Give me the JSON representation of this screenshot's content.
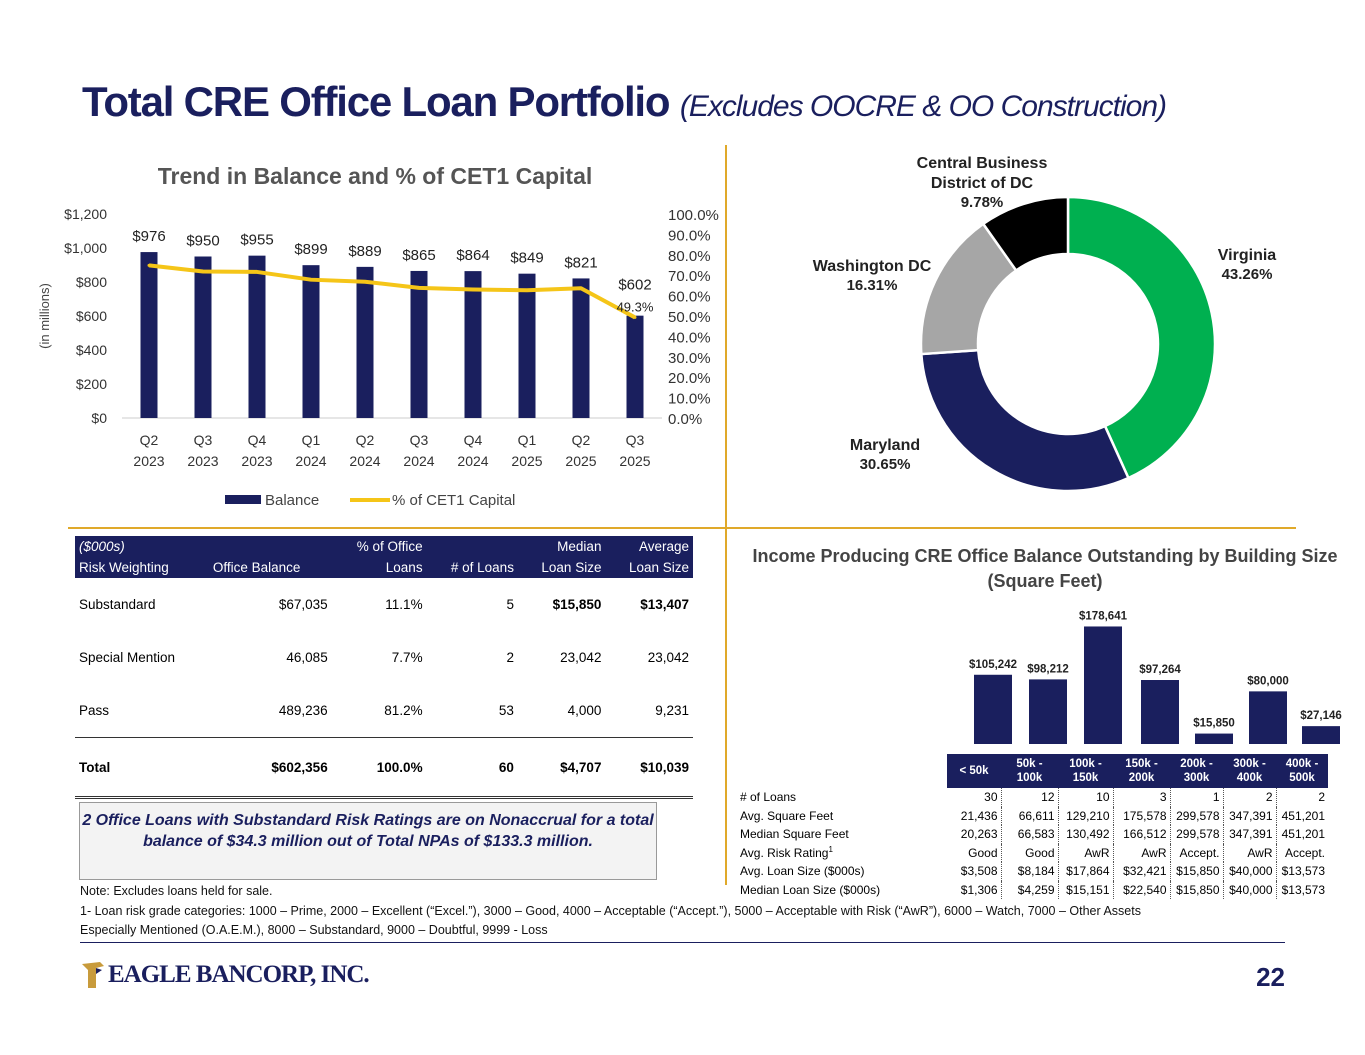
{
  "page": {
    "title": "Total CRE Office Loan Portfolio",
    "subtitle": "(Excludes OOCRE & OO Construction)",
    "page_number": "22",
    "logo_text": "EAGLE BANCORP, INC.",
    "colors": {
      "navy": "#1a1f5e",
      "gold": "#f5c518",
      "green": "#00b050",
      "gray": "#a6a6a6",
      "black": "#000000",
      "divider": "#e0a92a"
    }
  },
  "chart_data": [
    {
      "type": "bar",
      "title": "Trend in Balance and % of CET1 Capital",
      "ylabel": "(in millions)",
      "categories": [
        "Q2 2023",
        "Q3 2023",
        "Q4 2023",
        "Q1 2024",
        "Q2 2024",
        "Q3 2024",
        "Q4 2024",
        "Q1 2025",
        "Q2 2025",
        "Q3 2025"
      ],
      "cat_line1": [
        "Q2",
        "Q3",
        "Q4",
        "Q1",
        "Q2",
        "Q3",
        "Q4",
        "Q1",
        "Q2",
        "Q3"
      ],
      "cat_line2": [
        "2023",
        "2023",
        "2023",
        "2024",
        "2024",
        "2024",
        "2024",
        "2025",
        "2025",
        "2025"
      ],
      "series": [
        {
          "name": "Balance",
          "values": [
            976,
            950,
            955,
            899,
            889,
            865,
            864,
            849,
            821,
            602
          ],
          "labels": [
            "$976",
            "$950",
            "$955",
            "$899",
            "$889",
            "$865",
            "$864",
            "$849",
            "$821",
            "$602"
          ],
          "color": "#1a1f5e"
        },
        {
          "name": "% of CET1 Capital",
          "type": "line",
          "axis": "right",
          "values": [
            74.8,
            71.8,
            71.6,
            67.8,
            66.8,
            63.8,
            63.0,
            62.6,
            63.6,
            49.3
          ],
          "labels": [
            "",
            "",
            "",
            "",
            "",
            "",
            "",
            "",
            "",
            "49.3%"
          ],
          "color": "#f5c518"
        }
      ],
      "ylim": [
        0,
        1200
      ],
      "yticks": [
        "$0",
        "$200",
        "$400",
        "$600",
        "$800",
        "$1,000",
        "$1,200"
      ],
      "y2lim": [
        0,
        100
      ],
      "y2ticks": [
        "0.0%",
        "10.0%",
        "20.0%",
        "30.0%",
        "40.0%",
        "50.0%",
        "60.0%",
        "70.0%",
        "80.0%",
        "90.0%",
        "100.0%"
      ],
      "legend": [
        "Balance",
        "% of CET1 Capital"
      ]
    },
    {
      "type": "pie",
      "variant": "donut",
      "slices": [
        {
          "name": "Virginia",
          "value": 43.26,
          "label": "43.26%",
          "color": "#00b050"
        },
        {
          "name": "Maryland",
          "value": 30.65,
          "label": "30.65%",
          "color": "#1a1f5e"
        },
        {
          "name": "Washington DC",
          "value": 16.31,
          "label": "16.31%",
          "color": "#a6a6a6"
        },
        {
          "name": "Central Business District of DC",
          "value": 9.78,
          "label": "9.78%",
          "color": "#000000"
        }
      ]
    },
    {
      "type": "bar",
      "title": "Income Producing CRE Office Balance Outstanding by Building Size (Square Feet)",
      "title_line1": "Income Producing CRE Office Balance Outstanding by Building Size",
      "title_line2": "(Square Feet)",
      "categories": [
        "< 50k",
        "50k - 100k",
        "100k - 150k",
        "150k - 200k",
        "200k - 300k",
        "300k - 400k",
        "400k - 500k"
      ],
      "values": [
        105242,
        98212,
        178641,
        97264,
        15850,
        80000,
        27146
      ],
      "labels": [
        "$105,242",
        "$98,212",
        "$178,641",
        "$97,264",
        "$15,850",
        "$80,000",
        "$27,146"
      ],
      "color": "#1a1f5e",
      "ylim": [
        0,
        190000
      ]
    }
  ],
  "risk_table": {
    "header_row1": [
      "($000s)",
      "",
      "% of Office",
      "",
      "Median",
      "Average"
    ],
    "header_row2": [
      "Risk Weighting",
      "Office Balance",
      "Loans",
      "# of Loans",
      "Loan Size",
      "Loan Size"
    ],
    "rows": [
      [
        "Substandard",
        "$67,035",
        "11.1%",
        "5",
        "$15,850",
        "$13,407"
      ],
      [
        "Special Mention",
        "46,085",
        "7.7%",
        "2",
        "23,042",
        "23,042"
      ],
      [
        "Pass",
        "489,236",
        "81.2%",
        "53",
        "4,000",
        "9,231"
      ]
    ],
    "total": [
      "Total",
      "$602,356",
      "100.0%",
      "60",
      "$4,707",
      "$10,039"
    ]
  },
  "callout": "2 Office Loans with Substandard Risk Ratings are on Nonaccrual for a total balance of $34.3 million out of Total NPAs of $133.3 million.",
  "size_table": {
    "headers": [
      [
        "< 50k",
        ""
      ],
      [
        "50k - 100k",
        ""
      ],
      [
        "100k -",
        "150k"
      ],
      [
        "150k -",
        "200k"
      ],
      [
        "200k -",
        "300k"
      ],
      [
        "300k -",
        "400k"
      ],
      [
        "400k -",
        "500k"
      ]
    ],
    "rows": [
      {
        "label": "# of Loans",
        "sup": "",
        "values": [
          "30",
          "12",
          "10",
          "3",
          "1",
          "2",
          "2"
        ]
      },
      {
        "label": "Avg. Square Feet",
        "sup": "",
        "values": [
          "21,436",
          "66,611",
          "129,210",
          "175,578",
          "299,578",
          "347,391",
          "451,201"
        ]
      },
      {
        "label": "Median Square Feet",
        "sup": "",
        "values": [
          "20,263",
          "66,583",
          "130,492",
          "166,512",
          "299,578",
          "347,391",
          "451,201"
        ]
      },
      {
        "label": "Avg. Risk Rating",
        "sup": "1",
        "values": [
          "Good",
          "Good",
          "AwR",
          "AwR",
          "Accept.",
          "AwR",
          "Accept."
        ]
      },
      {
        "label": "Avg. Loan Size ($000s)",
        "sup": "",
        "values": [
          "$3,508",
          "$8,184",
          "$17,864",
          "$32,421",
          "$15,850",
          "$40,000",
          "$13,573"
        ]
      },
      {
        "label": "Median Loan Size ($000s)",
        "sup": "",
        "values": [
          "$1,306",
          "$4,259",
          "$15,151",
          "$22,540",
          "$15,850",
          "$40,000",
          "$13,573"
        ]
      }
    ]
  },
  "notes": {
    "line1": "Note: Excludes loans held for sale.",
    "line2": "1- Loan risk grade categories: 1000 – Prime, 2000 – Excellent (“Excel.”), 3000 – Good, 4000 – Acceptable (“Accept.”), 5000 – Acceptable with Risk (“AwR”), 6000 – Watch, 7000 – Other Assets",
    "line3": "Especially Mentioned (O.A.E.M.), 8000 – Substandard, 9000 – Doubtful, 9999 - Loss"
  }
}
